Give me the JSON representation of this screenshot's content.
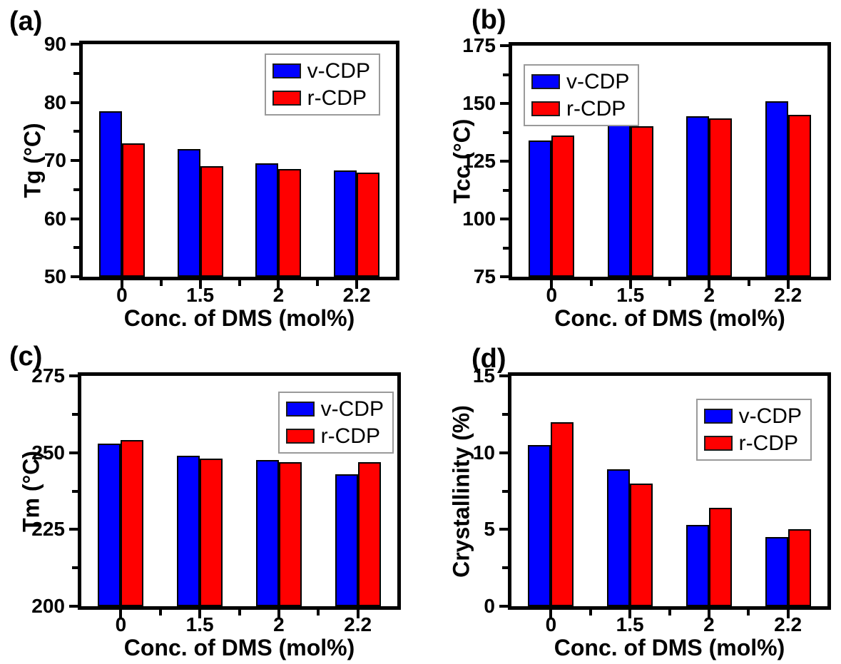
{
  "colors": {
    "v_cdp": "#0000ff",
    "r_cdp": "#ff0000",
    "axis": "#000000",
    "legend_border": "#9a9a9a",
    "background": "#ffffff"
  },
  "chart_data": [
    {
      "panel": "(a)",
      "type": "bar",
      "ylabel": "Tg (°C)",
      "xlabel": "Conc. of DMS (mol%)",
      "categories": [
        "0",
        "1.5",
        "2",
        "2.2"
      ],
      "series": [
        {
          "name": "v-CDP",
          "color": "#0000ff",
          "values": [
            78.5,
            72,
            69.5,
            68.3
          ]
        },
        {
          "name": "r-CDP",
          "color": "#ff0000",
          "values": [
            73,
            69,
            68.5,
            67.9
          ]
        }
      ],
      "ylim": [
        50,
        90
      ],
      "yticks": [
        50,
        60,
        70,
        80,
        90
      ],
      "y_minor_divisions": 2,
      "legend_position": "top-right",
      "grid": false
    },
    {
      "panel": "(b)",
      "type": "bar",
      "ylabel": "Tcc (°C)",
      "xlabel": "Conc. of DMS (mol%)",
      "categories": [
        "0",
        "1.5",
        "2",
        "2.2"
      ],
      "series": [
        {
          "name": "v-CDP",
          "color": "#0000ff",
          "values": [
            134,
            142,
            144.5,
            151
          ]
        },
        {
          "name": "r-CDP",
          "color": "#ff0000",
          "values": [
            136,
            140,
            143.5,
            145
          ]
        }
      ],
      "ylim": [
        75,
        175
      ],
      "yticks": [
        75,
        100,
        125,
        150,
        175
      ],
      "y_minor_divisions": 2,
      "legend_position": "top-left",
      "grid": false
    },
    {
      "panel": "(c)",
      "type": "bar",
      "ylabel": "Tm (°C)",
      "xlabel": "Conc. of DMS (mol%)",
      "categories": [
        "0",
        "1.5",
        "2",
        "2.2"
      ],
      "series": [
        {
          "name": "v-CDP",
          "color": "#0000ff",
          "values": [
            253,
            249,
            247.5,
            243
          ]
        },
        {
          "name": "r-CDP",
          "color": "#ff0000",
          "values": [
            254,
            248,
            247,
            247
          ]
        }
      ],
      "ylim": [
        200,
        275
      ],
      "yticks": [
        200,
        225,
        250,
        275
      ],
      "y_minor_divisions": 2,
      "legend_position": "top-right",
      "grid": false
    },
    {
      "panel": "(d)",
      "type": "bar",
      "ylabel": "Crystallinity (%)",
      "xlabel": "Conc. of DMS (mol%)",
      "categories": [
        "0",
        "1.5",
        "2",
        "2.2"
      ],
      "series": [
        {
          "name": "v-CDP",
          "color": "#0000ff",
          "values": [
            10.5,
            8.9,
            5.3,
            4.5
          ]
        },
        {
          "name": "r-CDP",
          "color": "#ff0000",
          "values": [
            12,
            8,
            6.4,
            5
          ]
        }
      ],
      "ylim": [
        0,
        15
      ],
      "yticks": [
        0,
        5,
        10,
        15
      ],
      "y_minor_divisions": 2,
      "legend_position": "top-right",
      "grid": false
    }
  ]
}
